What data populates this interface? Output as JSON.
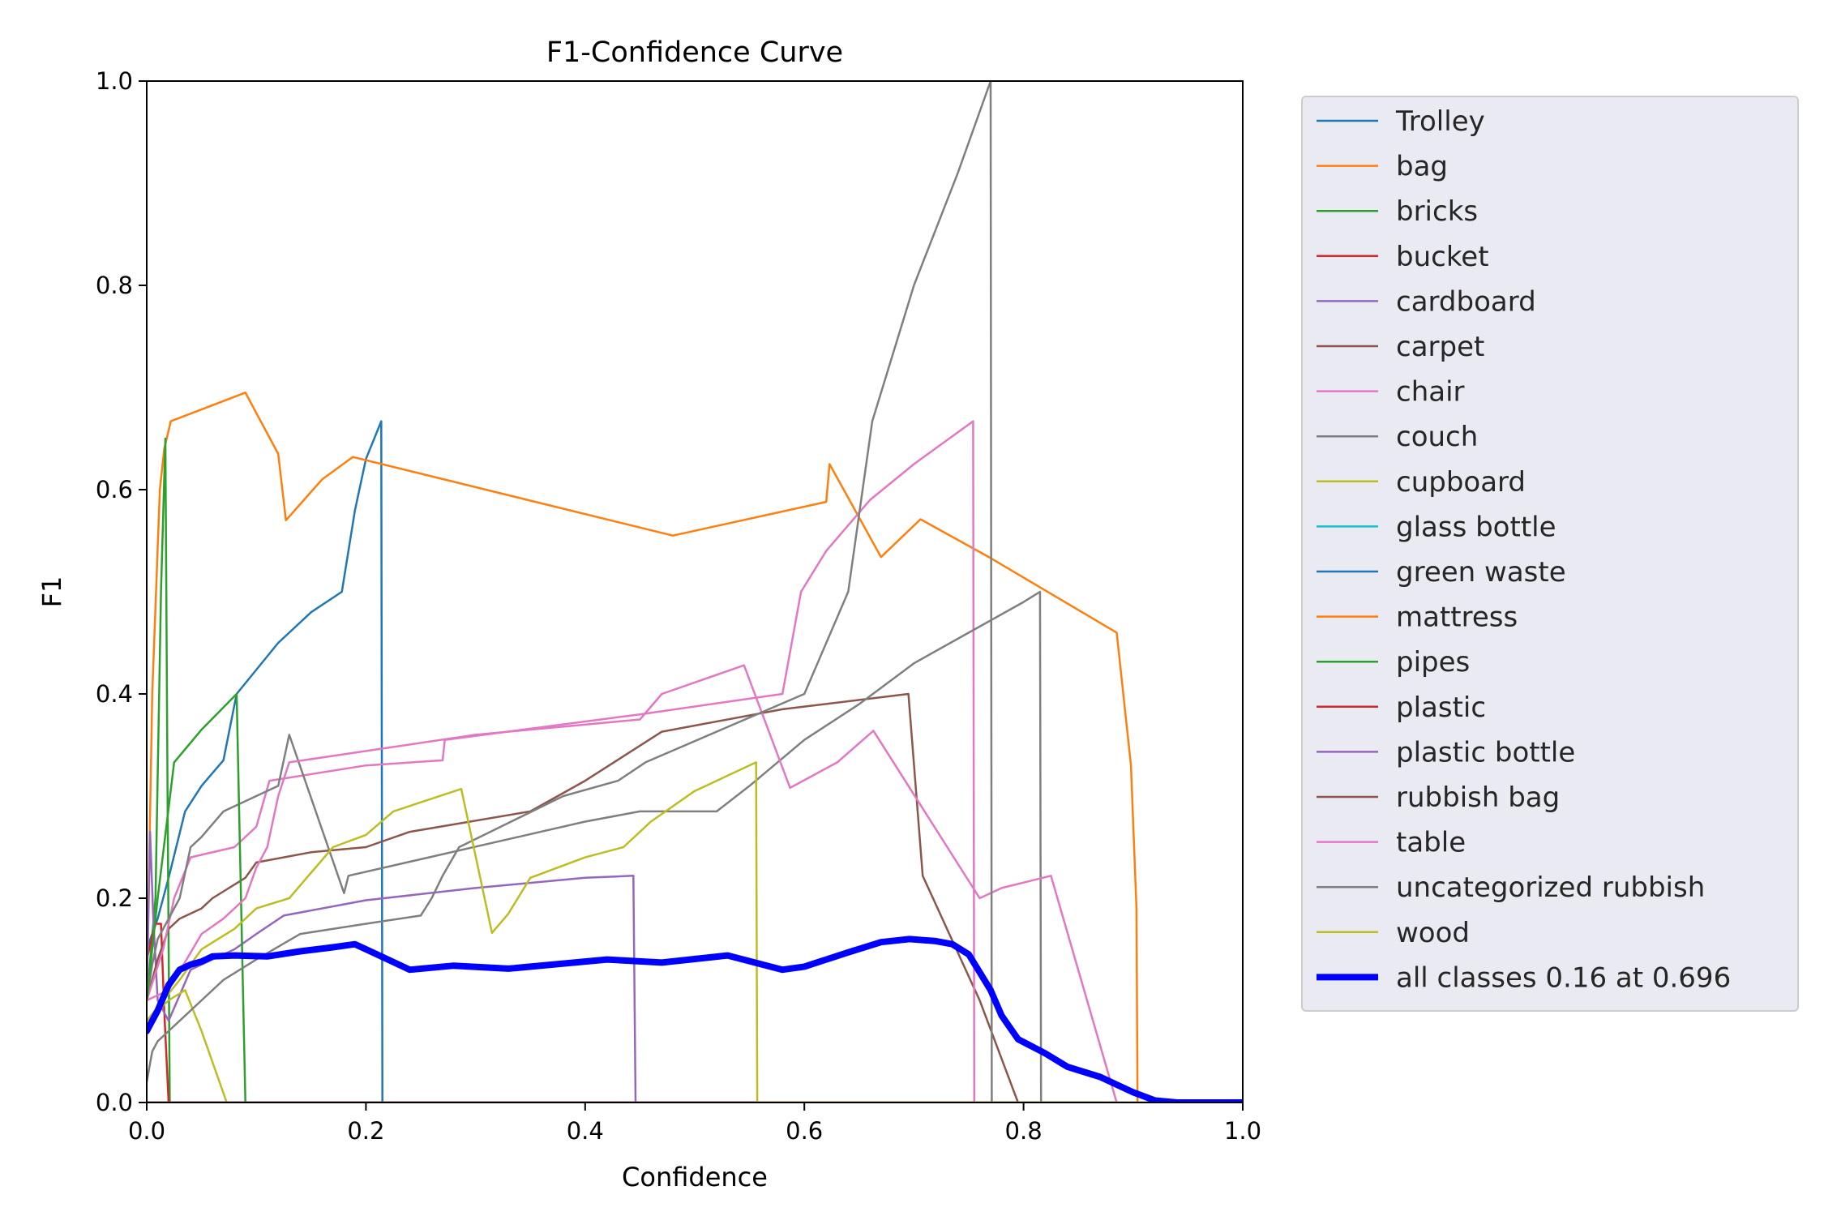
{
  "chart_data": {
    "type": "line",
    "title": "F1-Confidence Curve",
    "xlabel": "Confidence",
    "ylabel": "F1",
    "xlim": [
      0,
      1
    ],
    "ylim": [
      0,
      1
    ],
    "xticks": [
      "0.0",
      "0.2",
      "0.4",
      "0.6",
      "0.8",
      "1.0"
    ],
    "yticks": [
      "0.0",
      "0.2",
      "0.4",
      "0.6",
      "0.8",
      "1.0"
    ],
    "grid": false,
    "legend_position": "outside-right",
    "series": [
      {
        "name": "Trolley",
        "color": "#1f77b4",
        "width": 2.5,
        "points": [
          [
            0.0,
            0.15
          ],
          [
            0.01,
            0.18
          ],
          [
            0.02,
            0.22
          ],
          [
            0.035,
            0.285
          ],
          [
            0.05,
            0.31
          ],
          [
            0.07,
            0.335
          ],
          [
            0.082,
            0.4
          ],
          [
            0.12,
            0.45
          ],
          [
            0.15,
            0.48
          ],
          [
            0.178,
            0.5
          ],
          [
            0.19,
            0.58
          ],
          [
            0.2,
            0.63
          ],
          [
            0.214,
            0.667
          ],
          [
            0.215,
            0.0
          ],
          [
            1.0,
            0.0
          ]
        ]
      },
      {
        "name": "bag",
        "color": "#ff7f0e",
        "width": 2.5,
        "points": [
          [
            0.0,
            0.1
          ],
          [
            0.005,
            0.4
          ],
          [
            0.012,
            0.6
          ],
          [
            0.016,
            0.64
          ],
          [
            0.022,
            0.667
          ],
          [
            0.09,
            0.695
          ],
          [
            0.12,
            0.635
          ],
          [
            0.127,
            0.57
          ],
          [
            0.16,
            0.61
          ],
          [
            0.188,
            0.632
          ],
          [
            0.48,
            0.555
          ],
          [
            0.62,
            0.588
          ],
          [
            0.623,
            0.625
          ],
          [
            0.67,
            0.534
          ],
          [
            0.706,
            0.571
          ],
          [
            0.77,
            0.533
          ],
          [
            0.885,
            0.46
          ],
          [
            0.898,
            0.33
          ],
          [
            0.903,
            0.19
          ],
          [
            0.904,
            0.0
          ],
          [
            1.0,
            0.0
          ]
        ]
      },
      {
        "name": "bricks",
        "color": "#2ca02c",
        "width": 2.5,
        "points": [
          [
            0.0,
            0.1
          ],
          [
            0.008,
            0.2
          ],
          [
            0.013,
            0.5
          ],
          [
            0.017,
            0.65
          ],
          [
            0.019,
            0.3
          ],
          [
            0.021,
            0.0
          ],
          [
            1.0,
            0.0
          ]
        ]
      },
      {
        "name": "bucket",
        "color": "#d62728",
        "width": 2.5,
        "points": [
          [
            0.0,
            0.14
          ],
          [
            0.008,
            0.175
          ],
          [
            0.013,
            0.175
          ],
          [
            0.016,
            0.09
          ],
          [
            0.02,
            0.0
          ],
          [
            1.0,
            0.0
          ]
        ]
      },
      {
        "name": "cardboard",
        "color": "#9467bd",
        "width": 2.5,
        "points": [
          [
            0.0,
            0.1
          ],
          [
            0.003,
            0.265
          ],
          [
            0.006,
            0.18
          ],
          [
            0.01,
            0.1
          ],
          [
            0.02,
            0.08
          ],
          [
            0.04,
            0.13
          ],
          [
            0.08,
            0.15
          ],
          [
            0.1,
            0.165
          ],
          [
            0.125,
            0.183
          ],
          [
            0.2,
            0.198
          ],
          [
            0.3,
            0.21
          ],
          [
            0.4,
            0.22
          ],
          [
            0.444,
            0.222
          ],
          [
            0.446,
            0.0
          ],
          [
            1.0,
            0.0
          ]
        ]
      },
      {
        "name": "carpet",
        "color": "#8c564b",
        "width": 2.5,
        "points": [
          [
            0.0,
            0.1
          ],
          [
            0.01,
            0.14
          ],
          [
            0.02,
            0.17
          ],
          [
            0.03,
            0.18
          ],
          [
            0.05,
            0.19
          ],
          [
            0.06,
            0.2
          ],
          [
            0.09,
            0.22
          ],
          [
            0.1,
            0.235
          ],
          [
            0.15,
            0.245
          ],
          [
            0.2,
            0.25
          ],
          [
            0.24,
            0.265
          ],
          [
            0.35,
            0.285
          ],
          [
            0.4,
            0.315
          ],
          [
            0.47,
            0.363
          ],
          [
            0.58,
            0.385
          ],
          [
            0.695,
            0.4
          ],
          [
            0.708,
            0.222
          ],
          [
            0.76,
            0.1
          ],
          [
            0.795,
            0.0
          ],
          [
            1.0,
            0.0
          ]
        ]
      },
      {
        "name": "chair",
        "color": "#e377c2",
        "width": 2.5,
        "points": [
          [
            0.0,
            0.1
          ],
          [
            0.015,
            0.15
          ],
          [
            0.025,
            0.2
          ],
          [
            0.04,
            0.24
          ],
          [
            0.08,
            0.25
          ],
          [
            0.1,
            0.27
          ],
          [
            0.112,
            0.315
          ],
          [
            0.2,
            0.33
          ],
          [
            0.2,
            0.33
          ],
          [
            0.27,
            0.335
          ],
          [
            0.272,
            0.355
          ],
          [
            0.45,
            0.38
          ],
          [
            0.58,
            0.4
          ],
          [
            0.597,
            0.5
          ],
          [
            0.62,
            0.54
          ],
          [
            0.66,
            0.59
          ],
          [
            0.7,
            0.625
          ],
          [
            0.754,
            0.667
          ],
          [
            0.755,
            0.0
          ],
          [
            1.0,
            0.0
          ]
        ]
      },
      {
        "name": "couch",
        "color": "#7f7f7f",
        "width": 2.5,
        "points": [
          [
            0.0,
            0.1
          ],
          [
            0.005,
            0.135
          ],
          [
            0.01,
            0.16
          ],
          [
            0.03,
            0.2
          ],
          [
            0.04,
            0.25
          ],
          [
            0.05,
            0.26
          ],
          [
            0.07,
            0.285
          ],
          [
            0.12,
            0.31
          ],
          [
            0.13,
            0.36
          ],
          [
            0.18,
            0.205
          ],
          [
            0.184,
            0.222
          ],
          [
            0.4,
            0.275
          ],
          [
            0.45,
            0.285
          ],
          [
            0.52,
            0.285
          ],
          [
            0.55,
            0.31
          ],
          [
            0.6,
            0.355
          ],
          [
            0.65,
            0.39
          ],
          [
            0.7,
            0.43
          ],
          [
            0.75,
            0.46
          ],
          [
            0.8,
            0.49
          ],
          [
            0.815,
            0.5
          ],
          [
            0.816,
            0.0
          ],
          [
            1.0,
            0.0
          ]
        ]
      },
      {
        "name": "cupboard",
        "color": "#bcbd22",
        "width": 2.5,
        "points": [
          [
            0.0,
            0.08
          ],
          [
            0.02,
            0.1
          ],
          [
            0.035,
            0.11
          ],
          [
            0.05,
            0.07
          ],
          [
            0.073,
            0.0
          ],
          [
            1.0,
            0.0
          ]
        ]
      },
      {
        "name": "glass bottle",
        "color": "#17becf",
        "width": 2.5,
        "points": [
          [
            0.0,
            0.0
          ],
          [
            1.0,
            0.0
          ]
        ]
      },
      {
        "name": "green waste",
        "color": "#1f77b4",
        "width": 2.5,
        "points": [
          [
            0.0,
            0.0
          ],
          [
            1.0,
            0.0
          ]
        ]
      },
      {
        "name": "mattress",
        "color": "#ff7f0e",
        "width": 2.5,
        "points": [
          [
            0.0,
            0.0
          ],
          [
            1.0,
            0.0
          ]
        ]
      },
      {
        "name": "pipes",
        "color": "#2ca02c",
        "width": 2.5,
        "points": [
          [
            0.0,
            0.1
          ],
          [
            0.01,
            0.2
          ],
          [
            0.025,
            0.333
          ],
          [
            0.05,
            0.365
          ],
          [
            0.082,
            0.4
          ],
          [
            0.088,
            0.1
          ],
          [
            0.09,
            0.0
          ],
          [
            1.0,
            0.0
          ]
        ]
      },
      {
        "name": "plastic",
        "color": "#d62728",
        "width": 2.5,
        "points": [
          [
            0.0,
            0.0
          ],
          [
            1.0,
            0.0
          ]
        ]
      },
      {
        "name": "plastic bottle",
        "color": "#9467bd",
        "width": 2.5,
        "points": [
          [
            0.0,
            0.0
          ],
          [
            1.0,
            0.0
          ]
        ]
      },
      {
        "name": "rubbish bag",
        "color": "#8c564b",
        "width": 2.5,
        "points": [
          [
            0.0,
            0.0
          ],
          [
            1.0,
            0.0
          ]
        ]
      },
      {
        "name": "table",
        "color": "#e377c2",
        "width": 2.5,
        "points": [
          [
            0.0,
            0.1
          ],
          [
            0.02,
            0.11
          ],
          [
            0.05,
            0.165
          ],
          [
            0.07,
            0.18
          ],
          [
            0.09,
            0.2
          ],
          [
            0.1,
            0.23
          ],
          [
            0.11,
            0.25
          ],
          [
            0.12,
            0.3
          ],
          [
            0.13,
            0.333
          ],
          [
            0.3,
            0.36
          ],
          [
            0.45,
            0.375
          ],
          [
            0.47,
            0.4
          ],
          [
            0.545,
            0.428
          ],
          [
            0.587,
            0.308
          ],
          [
            0.63,
            0.333
          ],
          [
            0.663,
            0.364
          ],
          [
            0.76,
            0.2
          ],
          [
            0.78,
            0.21
          ],
          [
            0.825,
            0.222
          ],
          [
            0.885,
            0.0
          ],
          [
            1.0,
            0.0
          ]
        ]
      },
      {
        "name": "uncategorized rubbish",
        "color": "#7f7f7f",
        "width": 2.5,
        "points": [
          [
            0.0,
            0.02
          ],
          [
            0.005,
            0.05
          ],
          [
            0.01,
            0.06
          ],
          [
            0.03,
            0.08
          ],
          [
            0.05,
            0.1
          ],
          [
            0.07,
            0.12
          ],
          [
            0.1,
            0.14
          ],
          [
            0.14,
            0.165
          ],
          [
            0.2,
            0.175
          ],
          [
            0.25,
            0.183
          ],
          [
            0.26,
            0.2
          ],
          [
            0.27,
            0.222
          ],
          [
            0.285,
            0.25
          ],
          [
            0.38,
            0.3
          ],
          [
            0.43,
            0.315
          ],
          [
            0.455,
            0.333
          ],
          [
            0.6,
            0.4
          ],
          [
            0.64,
            0.5
          ],
          [
            0.662,
            0.667
          ],
          [
            0.7,
            0.8
          ],
          [
            0.74,
            0.91
          ],
          [
            0.77,
            1.0
          ],
          [
            0.771,
            0.0
          ],
          [
            1.0,
            0.0
          ]
        ]
      },
      {
        "name": "wood",
        "color": "#bcbd22",
        "width": 2.5,
        "points": [
          [
            0.0,
            0.08
          ],
          [
            0.03,
            0.12
          ],
          [
            0.05,
            0.15
          ],
          [
            0.08,
            0.17
          ],
          [
            0.1,
            0.19
          ],
          [
            0.13,
            0.2
          ],
          [
            0.15,
            0.225
          ],
          [
            0.17,
            0.25
          ],
          [
            0.2,
            0.262
          ],
          [
            0.225,
            0.285
          ],
          [
            0.287,
            0.307
          ],
          [
            0.315,
            0.166
          ],
          [
            0.33,
            0.185
          ],
          [
            0.35,
            0.22
          ],
          [
            0.4,
            0.24
          ],
          [
            0.435,
            0.25
          ],
          [
            0.46,
            0.275
          ],
          [
            0.5,
            0.305
          ],
          [
            0.53,
            0.32
          ],
          [
            0.556,
            0.333
          ],
          [
            0.557,
            0.0
          ],
          [
            1.0,
            0.0
          ]
        ]
      },
      {
        "name": "all classes 0.16 at 0.696",
        "color": "#0000ff",
        "width": 8,
        "points": [
          [
            0.0,
            0.07
          ],
          [
            0.01,
            0.09
          ],
          [
            0.02,
            0.115
          ],
          [
            0.03,
            0.13
          ],
          [
            0.04,
            0.135
          ],
          [
            0.05,
            0.138
          ],
          [
            0.06,
            0.143
          ],
          [
            0.08,
            0.144
          ],
          [
            0.11,
            0.143
          ],
          [
            0.14,
            0.148
          ],
          [
            0.17,
            0.152
          ],
          [
            0.19,
            0.155
          ],
          [
            0.21,
            0.145
          ],
          [
            0.24,
            0.13
          ],
          [
            0.28,
            0.134
          ],
          [
            0.33,
            0.131
          ],
          [
            0.38,
            0.136
          ],
          [
            0.42,
            0.14
          ],
          [
            0.47,
            0.137
          ],
          [
            0.53,
            0.144
          ],
          [
            0.58,
            0.13
          ],
          [
            0.6,
            0.133
          ],
          [
            0.64,
            0.147
          ],
          [
            0.67,
            0.157
          ],
          [
            0.696,
            0.16
          ],
          [
            0.72,
            0.158
          ],
          [
            0.735,
            0.155
          ],
          [
            0.75,
            0.145
          ],
          [
            0.77,
            0.11
          ],
          [
            0.78,
            0.085
          ],
          [
            0.795,
            0.062
          ],
          [
            0.82,
            0.048
          ],
          [
            0.84,
            0.035
          ],
          [
            0.87,
            0.025
          ],
          [
            0.9,
            0.01
          ],
          [
            0.92,
            0.002
          ],
          [
            0.94,
            0.0
          ],
          [
            1.0,
            0.0
          ]
        ]
      }
    ]
  }
}
